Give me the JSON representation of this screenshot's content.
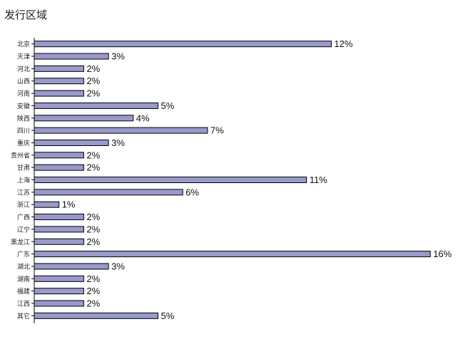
{
  "chart_data": {
    "type": "bar",
    "orientation": "horizontal",
    "title": "发行区域",
    "categories": [
      "北京",
      "天津",
      "河北",
      "山西",
      "河南",
      "安徽",
      "陕西",
      "四川",
      "重庆",
      "贵州省",
      "甘肃",
      "上海",
      "江苏",
      "浙江",
      "广西",
      "辽宁",
      "黑龙江",
      "广东",
      "湖北",
      "湖南",
      "福建",
      "江西",
      "其它"
    ],
    "values": [
      12,
      3,
      2,
      2,
      2,
      5,
      4,
      7,
      3,
      2,
      2,
      11,
      6,
      1,
      2,
      2,
      2,
      16,
      3,
      2,
      2,
      2,
      5
    ],
    "value_suffix": "%",
    "xlabel": "",
    "ylabel": "",
    "xlim": [
      0,
      16
    ],
    "grid": false,
    "legend": "none",
    "colors": {
      "bar_fill": "#9999cc",
      "bar_stroke": "#000000",
      "axis": "#000000"
    }
  }
}
